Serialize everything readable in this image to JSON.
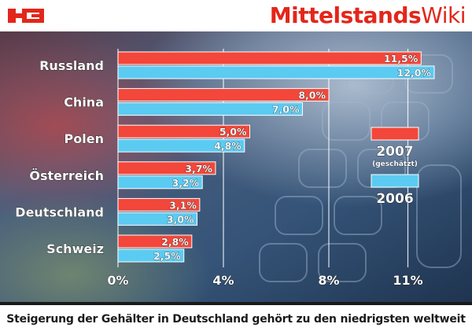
{
  "brand": {
    "part1": "Mittelstands",
    "part2": "Wiki"
  },
  "footer": {
    "caption": "Steigerung der Gehälter in Deutschland gehört zu den niedrigsten weltweit"
  },
  "colors": {
    "s2007": "#f2473a",
    "s2006": "#5bcbf2",
    "brand": "#e3261b"
  },
  "chart_data": {
    "type": "bar",
    "orientation": "horizontal",
    "categories": [
      "Russland",
      "China",
      "Polen",
      "Österreich",
      "Deutschland",
      "Schweiz"
    ],
    "series": [
      {
        "name": "2007",
        "note": "(geschätzt)",
        "color": "#f2473a",
        "values": [
          11.5,
          8.0,
          5.0,
          3.7,
          3.1,
          2.8
        ],
        "labels": [
          "11,5%",
          "8,0%",
          "5,0%",
          "3,7%",
          "3,1%",
          "2,8%"
        ]
      },
      {
        "name": "2006",
        "color": "#5bcbf2",
        "values": [
          12.0,
          7.0,
          4.8,
          3.2,
          3.0,
          2.5
        ],
        "labels": [
          "12,0%",
          "7,0%",
          "4,8%",
          "3,2%",
          "3,0%",
          "2,5%"
        ]
      }
    ],
    "x_ticks": [
      0,
      4,
      8,
      11
    ],
    "x_tick_labels": [
      "0%",
      "4%",
      "8%",
      "11%"
    ],
    "xlim": [
      0,
      12
    ],
    "legend_position": "right",
    "grid": true
  }
}
